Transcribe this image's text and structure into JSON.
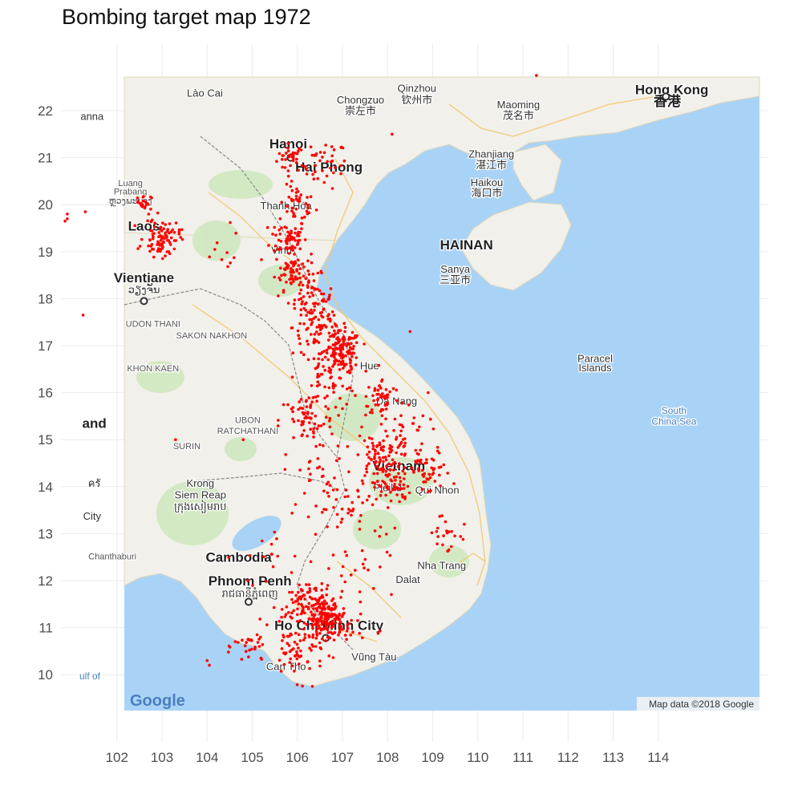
{
  "title": "Bombing target map 1972",
  "chart_data": {
    "type": "scatter",
    "x_ticks": [
      "102",
      "103",
      "104",
      "105",
      "106",
      "107",
      "108",
      "109",
      "110",
      "111",
      "112",
      "113",
      "114"
    ],
    "y_ticks": [
      "22",
      "21",
      "20",
      "19",
      "18",
      "17",
      "16",
      "15",
      "14",
      "13",
      "12",
      "11",
      "10"
    ],
    "xlim": [
      100.8,
      115.6
    ],
    "ylim": [
      9.0,
      22.7
    ],
    "grid": true,
    "point_color": "#ff0000",
    "clusters": [
      {
        "lon": 105.85,
        "lat": 21.0,
        "sd": 0.15,
        "n": 30
      },
      {
        "lon": 106.6,
        "lat": 20.85,
        "sd": 0.25,
        "n": 40
      },
      {
        "lon": 106.0,
        "lat": 20.0,
        "sd": 0.2,
        "n": 40
      },
      {
        "lon": 105.8,
        "lat": 19.3,
        "sd": 0.2,
        "n": 60
      },
      {
        "lon": 105.9,
        "lat": 18.6,
        "sd": 0.2,
        "n": 70
      },
      {
        "lon": 106.3,
        "lat": 18.0,
        "sd": 0.25,
        "n": 60
      },
      {
        "lon": 106.5,
        "lat": 17.4,
        "sd": 0.3,
        "n": 70
      },
      {
        "lon": 107.0,
        "lat": 16.9,
        "sd": 0.2,
        "n": 120
      },
      {
        "lon": 106.7,
        "lat": 16.3,
        "sd": 0.35,
        "n": 80
      },
      {
        "lon": 106.2,
        "lat": 15.4,
        "sd": 0.3,
        "n": 60
      },
      {
        "lon": 107.9,
        "lat": 15.9,
        "sd": 0.2,
        "n": 50
      },
      {
        "lon": 108.3,
        "lat": 15.2,
        "sd": 0.3,
        "n": 40
      },
      {
        "lon": 107.8,
        "lat": 14.6,
        "sd": 0.25,
        "n": 80
      },
      {
        "lon": 108.1,
        "lat": 14.0,
        "sd": 0.2,
        "n": 50
      },
      {
        "lon": 108.9,
        "lat": 14.3,
        "sd": 0.25,
        "n": 50
      },
      {
        "lon": 107.3,
        "lat": 13.5,
        "sd": 0.4,
        "n": 40
      },
      {
        "lon": 106.5,
        "lat": 14.2,
        "sd": 0.4,
        "n": 40
      },
      {
        "lon": 106.6,
        "lat": 11.2,
        "sd": 0.2,
        "n": 150
      },
      {
        "lon": 106.2,
        "lat": 11.5,
        "sd": 0.3,
        "n": 80
      },
      {
        "lon": 106.0,
        "lat": 10.5,
        "sd": 0.3,
        "n": 60
      },
      {
        "lon": 105.0,
        "lat": 10.6,
        "sd": 0.2,
        "n": 30
      },
      {
        "lon": 106.9,
        "lat": 11.0,
        "sd": 0.3,
        "n": 40
      },
      {
        "lon": 103.0,
        "lat": 19.3,
        "sd": 0.2,
        "n": 90
      },
      {
        "lon": 102.6,
        "lat": 20.05,
        "sd": 0.08,
        "n": 20
      },
      {
        "lon": 109.3,
        "lat": 13.0,
        "sd": 0.25,
        "n": 20
      },
      {
        "lon": 107.0,
        "lat": 12.0,
        "sd": 0.5,
        "n": 25
      },
      {
        "lon": 105.3,
        "lat": 12.5,
        "sd": 0.35,
        "n": 15
      },
      {
        "lon": 104.3,
        "lat": 19.0,
        "sd": 0.3,
        "n": 10
      }
    ],
    "outliers": [
      {
        "lon": 100.9,
        "lat": 19.8
      },
      {
        "lon": 100.85,
        "lat": 19.65
      },
      {
        "lon": 100.9,
        "lat": 19.7
      },
      {
        "lon": 101.3,
        "lat": 19.85
      },
      {
        "lon": 101.25,
        "lat": 17.65
      },
      {
        "lon": 103.3,
        "lat": 15.0
      },
      {
        "lon": 104.0,
        "lat": 10.3
      },
      {
        "lon": 104.05,
        "lat": 10.2
      },
      {
        "lon": 104.8,
        "lat": 15.0
      },
      {
        "lon": 104.9,
        "lat": 12.0
      },
      {
        "lon": 108.5,
        "lat": 17.3
      },
      {
        "lon": 108.9,
        "lat": 16.0
      },
      {
        "lon": 109.7,
        "lat": 13.2
      },
      {
        "lon": 111.3,
        "lat": 22.75
      },
      {
        "lon": 108.1,
        "lat": 21.5
      }
    ]
  },
  "basemap": {
    "attribution": "Map data ©2018 Google",
    "logo": "Google",
    "labels": [
      {
        "text": "Lào Cai",
        "lon": 103.95,
        "lat": 22.3,
        "style": "lbl"
      },
      {
        "text": "Hanoi",
        "lon": 105.8,
        "lat": 21.2,
        "style": "lbl-big"
      },
      {
        "text": "Hai Phong",
        "lon": 106.7,
        "lat": 20.7,
        "style": "lbl-big"
      },
      {
        "text": "Thanh Hóa",
        "lon": 105.75,
        "lat": 19.9,
        "style": "lbl"
      },
      {
        "text": "Vinh",
        "lon": 105.65,
        "lat": 18.95,
        "style": "lbl"
      },
      {
        "text": "Laos",
        "lon": 102.6,
        "lat": 19.45,
        "style": "lbl-big"
      },
      {
        "text": "Luang",
        "lon": 102.3,
        "lat": 20.4,
        "style": "lbl-sm"
      },
      {
        "text": "Prabang",
        "lon": 102.3,
        "lat": 20.22,
        "style": "lbl-sm"
      },
      {
        "text": "ຫຼວງພະບາງ",
        "lon": 102.3,
        "lat": 20.02,
        "style": "lbl-sm"
      },
      {
        "text": "Vientiane",
        "lon": 102.6,
        "lat": 18.35,
        "style": "lbl-big"
      },
      {
        "text": "ວຽງຈັນ",
        "lon": 102.6,
        "lat": 18.12,
        "style": "lbl"
      },
      {
        "text": "UDON THANI",
        "lon": 102.8,
        "lat": 17.4,
        "style": "lbl-sm"
      },
      {
        "text": "SAKON NAKHON",
        "lon": 104.1,
        "lat": 17.15,
        "style": "lbl-sm"
      },
      {
        "text": "KHON KAEN",
        "lon": 102.8,
        "lat": 16.45,
        "style": "lbl-sm"
      },
      {
        "text": "and",
        "lon": 101.5,
        "lat": 15.25,
        "style": "lbl-big"
      },
      {
        "text": "UBON",
        "lon": 104.9,
        "lat": 15.35,
        "style": "lbl-sm"
      },
      {
        "text": "RATCHATHANI",
        "lon": 104.9,
        "lat": 15.12,
        "style": "lbl-sm"
      },
      {
        "text": "SURIN",
        "lon": 103.55,
        "lat": 14.8,
        "style": "lbl-sm"
      },
      {
        "text": "Hue",
        "lon": 107.6,
        "lat": 16.5,
        "style": "lbl"
      },
      {
        "text": "Da Nang",
        "lon": 108.2,
        "lat": 15.75,
        "style": "lbl"
      },
      {
        "text": "Vietnam",
        "lon": 108.25,
        "lat": 14.35,
        "style": "lbl-big"
      },
      {
        "text": "Pleiku",
        "lon": 108.0,
        "lat": 13.9,
        "style": "lbl"
      },
      {
        "text": "Qui Nhon",
        "lon": 109.1,
        "lat": 13.85,
        "style": "lbl"
      },
      {
        "text": "Krong",
        "lon": 103.85,
        "lat": 14.0,
        "style": "lbl"
      },
      {
        "text": "Siem Reap",
        "lon": 103.85,
        "lat": 13.75,
        "style": "lbl"
      },
      {
        "text": "ក្រុងសៀមរាប",
        "lon": 103.85,
        "lat": 13.5,
        "style": "lbl"
      },
      {
        "text": "Cambodia",
        "lon": 104.7,
        "lat": 12.4,
        "style": "lbl-big"
      },
      {
        "text": "Phnom Penh",
        "lon": 104.95,
        "lat": 11.9,
        "style": "lbl-big"
      },
      {
        "text": "រាជធានីភ្នំពេញ",
        "lon": 104.95,
        "lat": 11.65,
        "style": "lbl"
      },
      {
        "text": "Chanthaburi",
        "lon": 101.9,
        "lat": 12.45,
        "style": "lbl-sm"
      },
      {
        "text": "Nha Trang",
        "lon": 109.2,
        "lat": 12.25,
        "style": "lbl"
      },
      {
        "text": "Dalat",
        "lon": 108.45,
        "lat": 11.95,
        "style": "lbl"
      },
      {
        "text": "Ho Chi Minh City",
        "lon": 106.7,
        "lat": 10.95,
        "style": "lbl-big"
      },
      {
        "text": "Vũng Tàu",
        "lon": 107.7,
        "lat": 10.3,
        "style": "lbl"
      },
      {
        "text": "Can Tho",
        "lon": 105.75,
        "lat": 10.1,
        "style": "lbl"
      },
      {
        "text": "Qinzhou",
        "lon": 108.65,
        "lat": 22.4,
        "style": "lbl"
      },
      {
        "text": "钦州市",
        "lon": 108.65,
        "lat": 22.15,
        "style": "lbl"
      },
      {
        "text": "Chongzuo",
        "lon": 107.4,
        "lat": 22.15,
        "style": "lbl"
      },
      {
        "text": "崇左市",
        "lon": 107.4,
        "lat": 21.92,
        "style": "lbl"
      },
      {
        "text": "Maoming",
        "lon": 110.9,
        "lat": 22.05,
        "style": "lbl"
      },
      {
        "text": "茂名市",
        "lon": 110.9,
        "lat": 21.82,
        "style": "lbl"
      },
      {
        "text": "Zhanjiang",
        "lon": 110.3,
        "lat": 21.0,
        "style": "lbl"
      },
      {
        "text": "湛江市",
        "lon": 110.3,
        "lat": 20.77,
        "style": "lbl"
      },
      {
        "text": "Haikou",
        "lon": 110.2,
        "lat": 20.4,
        "style": "lbl"
      },
      {
        "text": "海口市",
        "lon": 110.2,
        "lat": 20.17,
        "style": "lbl"
      },
      {
        "text": "HAINAN",
        "lon": 109.75,
        "lat": 19.05,
        "style": "lbl-big"
      },
      {
        "text": "Sanya",
        "lon": 109.5,
        "lat": 18.55,
        "style": "lbl"
      },
      {
        "text": "三亚市",
        "lon": 109.5,
        "lat": 18.32,
        "style": "lbl"
      },
      {
        "text": "Hong Kong",
        "lon": 114.3,
        "lat": 22.35,
        "style": "lbl-big"
      },
      {
        "text": "香港",
        "lon": 114.2,
        "lat": 22.1,
        "style": "lbl-big"
      },
      {
        "text": "Paracel",
        "lon": 112.6,
        "lat": 16.65,
        "style": "lbl"
      },
      {
        "text": "Islands",
        "lon": 112.6,
        "lat": 16.45,
        "style": "lbl"
      },
      {
        "text": "South",
        "lon": 114.35,
        "lat": 15.55,
        "style": "lbl-sea"
      },
      {
        "text": "China Sea",
        "lon": 114.35,
        "lat": 15.32,
        "style": "lbl-sea"
      },
      {
        "text": "anna",
        "lon": 101.45,
        "lat": 21.8,
        "style": "lbl"
      },
      {
        "text": "ครั",
        "lon": 101.5,
        "lat": 14.0,
        "style": "lbl"
      },
      {
        "text": "City",
        "lon": 101.45,
        "lat": 13.3,
        "style": "lbl"
      },
      {
        "text": "ulf of",
        "lon": 101.4,
        "lat": 9.9,
        "style": "lbl-sea"
      }
    ],
    "cities": [
      {
        "lon": 105.85,
        "lat": 21.0
      },
      {
        "lon": 102.6,
        "lat": 17.95
      },
      {
        "lon": 104.92,
        "lat": 11.55
      },
      {
        "lon": 106.63,
        "lat": 10.78
      },
      {
        "lon": 114.17,
        "lat": 22.3
      }
    ]
  }
}
